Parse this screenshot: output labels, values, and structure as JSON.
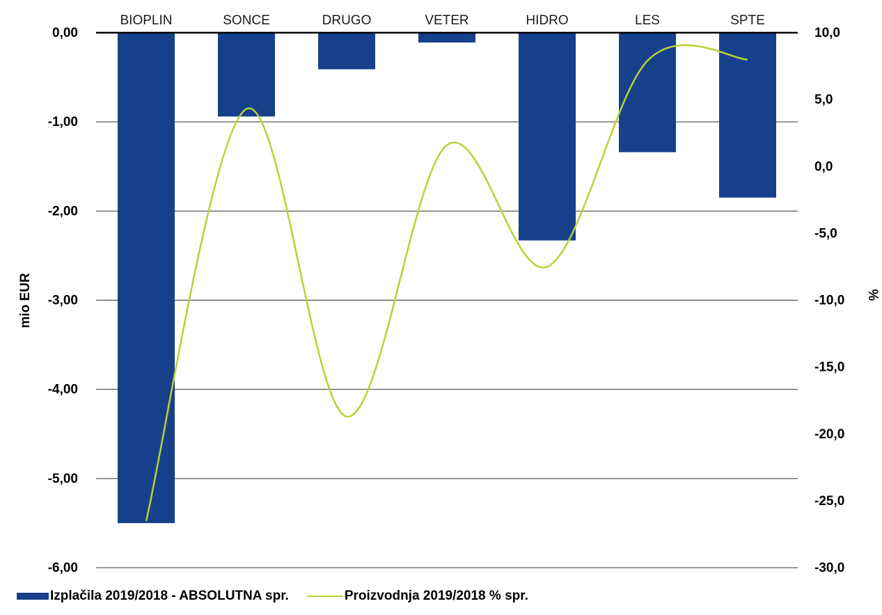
{
  "chart_data": {
    "type": "bar",
    "categories": [
      "BIOPLIN",
      "SONCE",
      "DRUGO",
      "VETER",
      "HIDRO",
      "LES",
      "SPTE"
    ],
    "series": [
      {
        "name": "Izplačila 2019/2018 - ABSOLUTNA spr.",
        "type": "bar",
        "axis": "left",
        "color": "#17408b",
        "values": [
          -5.5,
          -0.94,
          -0.41,
          -0.11,
          -2.33,
          -1.34,
          -1.85
        ]
      },
      {
        "name": "Proizvodnja 2019/2018 % spr.",
        "type": "line",
        "axis": "right",
        "color": "#b5d334",
        "values": [
          -26.5,
          4.3,
          -18.7,
          1.6,
          -7.5,
          7.9,
          8.0
        ]
      }
    ],
    "ylabel": "mio EUR",
    "ylabel_right": "%",
    "ylim": [
      -6,
      0
    ],
    "ylim_right": [
      -30,
      10
    ],
    "yticks": [
      "0,00",
      "-1,00",
      "-2,00",
      "-3,00",
      "-4,00",
      "-5,00",
      "-6,00"
    ],
    "yticks_right": [
      "10,0",
      "5,0",
      "0,0",
      "-5,0",
      "-10,0",
      "-15,0",
      "-20,0",
      "-25,0",
      "-30,0"
    ],
    "grid": true,
    "legend_position": "bottom-left"
  }
}
